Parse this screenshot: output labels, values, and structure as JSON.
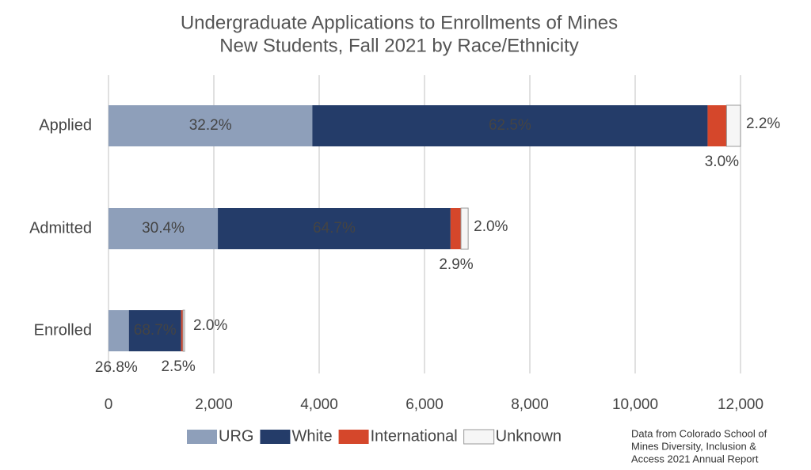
{
  "chart_data": {
    "type": "stacked_barh",
    "title": [
      "Undergraduate Applications to Enrollments of Mines",
      "New Students, Fall 2021 by Race/Ethnicity"
    ],
    "categories": [
      "Applied",
      "Admitted",
      "Enrolled"
    ],
    "series": [
      {
        "name": "URG",
        "color": "#8e9fba",
        "values": [
          3870,
          2076,
          387
        ],
        "value_labels": [
          "32.2%",
          "30.4%",
          "26.8%"
        ]
      },
      {
        "name": "White",
        "color": "#243c69",
        "values": [
          7505,
          4418,
          992
        ],
        "value_labels": [
          "62.5%",
          "64.7%",
          "68.7%"
        ]
      },
      {
        "name": "International",
        "color": "#d5472b",
        "values": [
          360,
          198,
          36
        ],
        "value_labels": [
          "3.0%",
          "2.9%",
          "2.5%"
        ]
      },
      {
        "name": "Unknown",
        "color": "#f6f6f6",
        "values": [
          265,
          137,
          29
        ],
        "value_labels": [
          "2.2%",
          "2.0%",
          "2.0%"
        ]
      }
    ],
    "xlim": [
      0,
      12000
    ],
    "xticks": [
      0,
      {
        "value": 2000,
        "label": "2,000"
      },
      {
        "value": 4000,
        "label": "4,000"
      },
      {
        "value": 6000,
        "label": "6,000"
      },
      {
        "value": 8000,
        "label": "8,000"
      },
      {
        "value": 10000,
        "label": "10,000"
      },
      {
        "value": 12000,
        "label": "12,000"
      }
    ],
    "grid": true,
    "annotation": [
      "Data from Colorado School of",
      "Mines Diversity, Inclusion &",
      "Access 2021 Annual Report"
    ]
  }
}
